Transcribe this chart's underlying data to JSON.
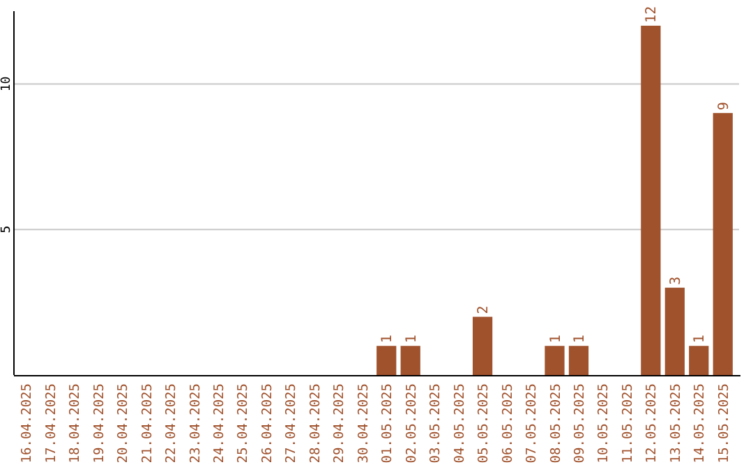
{
  "chart_data": {
    "type": "bar",
    "categories": [
      "16.04.2025",
      "17.04.2025",
      "18.04.2025",
      "19.04.2025",
      "20.04.2025",
      "21.04.2025",
      "22.04.2025",
      "23.04.2025",
      "24.04.2025",
      "25.04.2025",
      "26.04.2025",
      "27.04.2025",
      "28.04.2025",
      "29.04.2025",
      "30.04.2025",
      "01.05.2025",
      "02.05.2025",
      "03.05.2025",
      "04.05.2025",
      "05.05.2025",
      "06.05.2025",
      "07.05.2025",
      "08.05.2025",
      "09.05.2025",
      "10.05.2025",
      "11.05.2025",
      "12.05.2025",
      "13.05.2025",
      "14.05.2025",
      "15.05.2025"
    ],
    "values": [
      0,
      0,
      0,
      0,
      0,
      0,
      0,
      0,
      0,
      0,
      0,
      0,
      0,
      0,
      0,
      1,
      1,
      0,
      0,
      2,
      0,
      0,
      1,
      1,
      0,
      0,
      12,
      3,
      1,
      9
    ],
    "value_labels": [
      null,
      null,
      null,
      null,
      null,
      null,
      null,
      null,
      null,
      null,
      null,
      null,
      null,
      null,
      null,
      "1",
      "1",
      null,
      null,
      "2",
      null,
      null,
      "1",
      "1",
      null,
      null,
      "12",
      "3",
      "1",
      "9"
    ],
    "color": "#a0522d",
    "ylim": [
      0,
      12.5
    ],
    "yticks": [
      5,
      10
    ],
    "grid": "y"
  }
}
